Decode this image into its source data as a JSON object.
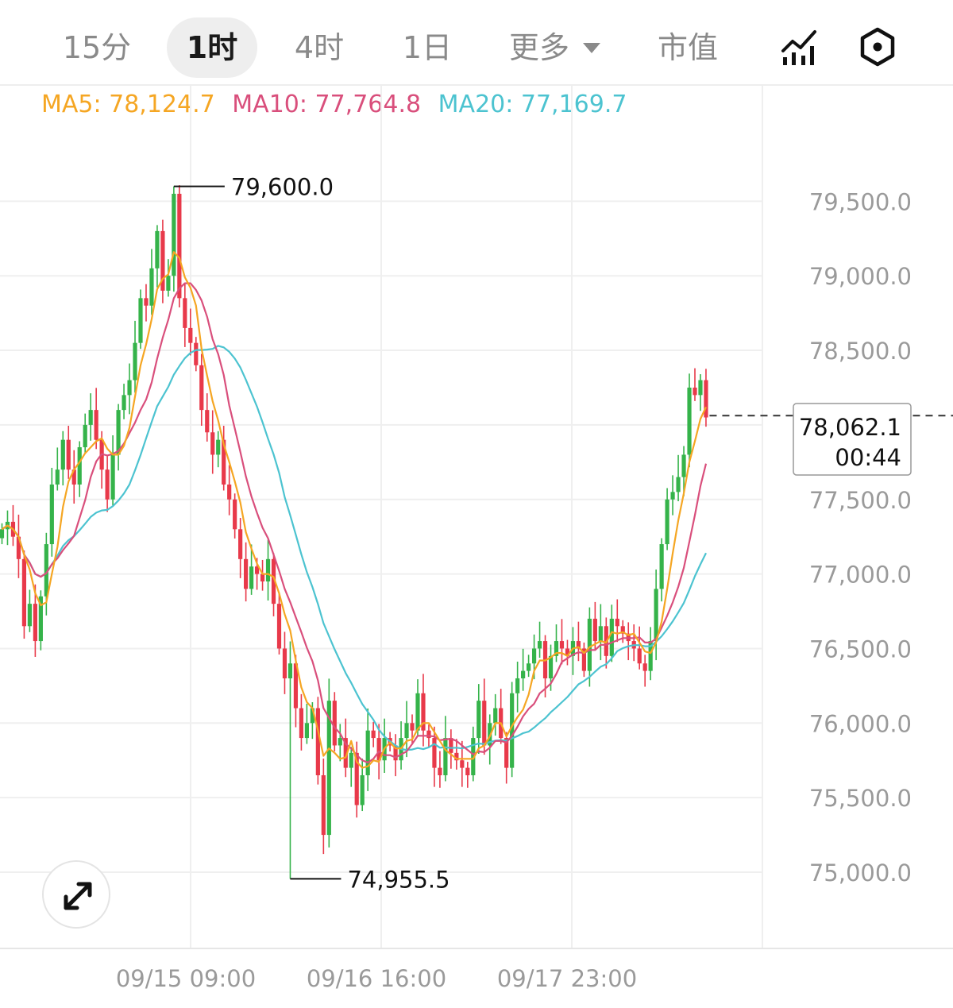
{
  "tabs": [
    {
      "label": "15分",
      "active": false
    },
    {
      "label": "1时",
      "active": true
    },
    {
      "label": "4时",
      "active": false
    },
    {
      "label": "1日",
      "active": false
    },
    {
      "label": "更多",
      "active": false,
      "has_dropdown": true
    },
    {
      "label": "市值",
      "active": false
    }
  ],
  "toolbar_icons": [
    "indicator-chart-icon",
    "settings-hexagon-icon"
  ],
  "ma_legend": [
    {
      "label": "MA5: 78,124.7",
      "color": "#f5a623"
    },
    {
      "label": "MA10: 77,764.8",
      "color": "#d94f7c"
    },
    {
      "label": "MA20: 77,169.7",
      "color": "#4cc3d0"
    }
  ],
  "colors": {
    "up": "#35b34a",
    "down": "#e8394a",
    "ma5": "#f5a623",
    "ma10": "#d94f7c",
    "ma20": "#4cc3d0",
    "grid": "#efefef",
    "axis_text": "#9a9a9a"
  },
  "chart_data": {
    "type": "candlestick",
    "interval": "1时",
    "y_ticks": [
      "79,500.0",
      "79,000.0",
      "78,500.0",
      "78,000.0",
      "77,500.0",
      "77,000.0",
      "76,500.0",
      "76,000.0",
      "75,500.0",
      "75,000.0"
    ],
    "x_ticks": [
      "09/15 09:00",
      "09/16 16:00",
      "09/17 23:00"
    ],
    "high_marker": {
      "label": "79,600.0",
      "value": 79600
    },
    "low_marker": {
      "label": "74,955.5",
      "value": 74955.5
    },
    "current_price": {
      "label": "78,062.1",
      "value": 78062.1,
      "countdown": "00:44"
    },
    "ma_values": {
      "MA5": 78124.7,
      "MA10": 77764.8,
      "MA20": 77169.7
    },
    "candles_close": [
      77300,
      77350,
      77250,
      77100,
      76650,
      76800,
      76550,
      76850,
      77200,
      77600,
      77700,
      77900,
      77700,
      77600,
      77850,
      78000,
      78100,
      77900,
      77700,
      77500,
      77800,
      78100,
      78200,
      78300,
      78550,
      78850,
      78800,
      79050,
      79300,
      78900,
      79000,
      79550,
      78850,
      78650,
      78550,
      78400,
      78100,
      77950,
      77800,
      77900,
      77600,
      77500,
      77300,
      77100,
      76900,
      77050,
      77000,
      76950,
      77100,
      76800,
      76500,
      76300,
      76400,
      76100,
      75900,
      76000,
      76100,
      75650,
      75250,
      76150,
      75850,
      75900,
      75700,
      75800,
      75450,
      75650,
      75950,
      75900,
      75750,
      75900,
      75850,
      75750,
      75900,
      76000,
      75950,
      76200,
      75950,
      75900,
      75700,
      75650,
      75900,
      75800,
      75750,
      75700,
      75650,
      75900,
      76150,
      75850,
      76000,
      76100,
      75900,
      75700,
      76200,
      76300,
      76350,
      76400,
      76500,
      76550,
      76300,
      76450,
      76550,
      76500,
      76450,
      76550,
      76500,
      76350,
      76700,
      76550,
      76650,
      76450,
      76700,
      76650,
      76600,
      76550,
      76500,
      76400,
      76350,
      76550,
      76900,
      77200,
      77500,
      77550,
      77650,
      77800,
      78250,
      78200,
      78300,
      78050
    ]
  }
}
